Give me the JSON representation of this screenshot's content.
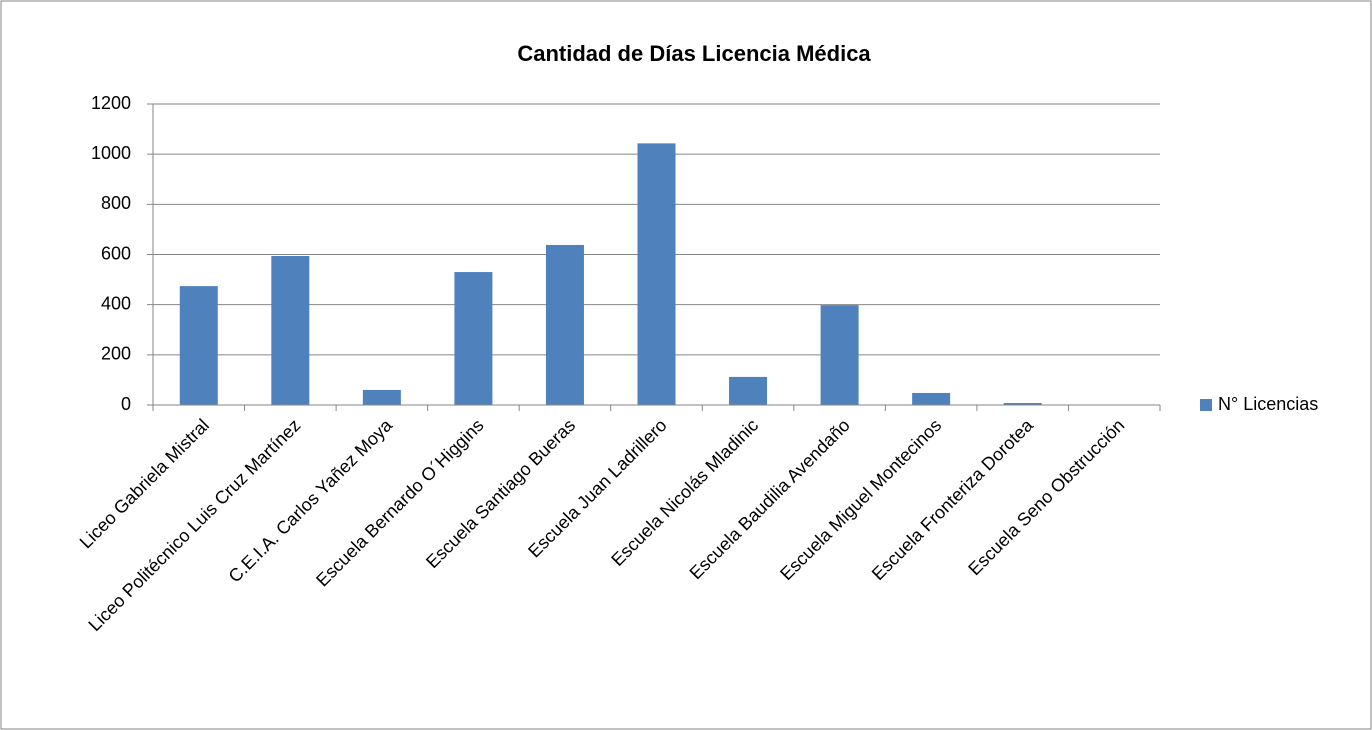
{
  "chart_data": {
    "type": "bar",
    "title": "Cantidad de Días Licencia Médica",
    "categories": [
      "Liceo Gabriela Mistral",
      "Liceo Politécnico Luis Cruz Martínez",
      "C.E.I.A. Carlos Yañez Moya",
      "Escuela Bernardo O´Higgins",
      "Escuela Santiago Bueras",
      "Escuela Juan Ladrillero",
      "Escuela Nicolás Mladinic",
      "Escuela Baudilia Avendaño",
      "Escuela Miguel Montecinos",
      "Escuela Fronteriza Dorotea",
      "Escuela Seno Obstrucción"
    ],
    "series": [
      {
        "name": "N° Licencias",
        "color": "#4f81bd",
        "values": [
          474,
          594,
          60,
          530,
          638,
          1043,
          112,
          398,
          48,
          8,
          2
        ]
      }
    ],
    "ylim": [
      0,
      1200
    ],
    "yticks": [
      0,
      200,
      400,
      600,
      800,
      1000,
      1200
    ],
    "grid": true,
    "legend": "right"
  }
}
